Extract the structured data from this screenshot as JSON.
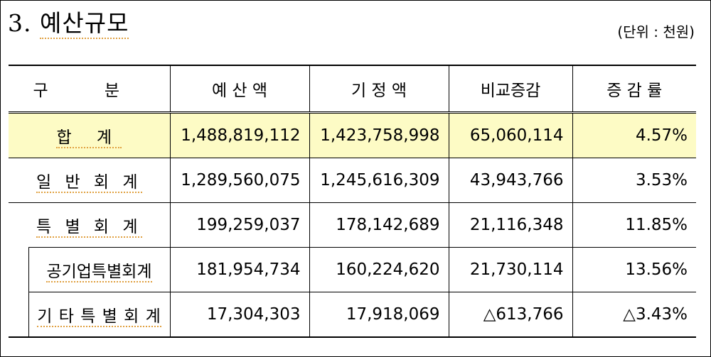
{
  "title": {
    "number": "3.",
    "text": "예산규모"
  },
  "unit_note": "(단위 : 천원)",
  "table": {
    "headers": [
      "구  분",
      "예 산 액",
      "기 정 액",
      "비교증감",
      "증 감 률"
    ],
    "rows": [
      {
        "label": "합 계",
        "budget": "1,488,819,112",
        "prior": "1,423,758,998",
        "change": "65,060,114",
        "rate": "4.57%"
      },
      {
        "label": "일 반 회 계",
        "budget": "1,289,560,075",
        "prior": "1,245,616,309",
        "change": "43,943,766",
        "rate": "3.53%"
      },
      {
        "label": "특 별 회 계",
        "budget": "199,259,037",
        "prior": "178,142,689",
        "change": "21,116,348",
        "rate": "11.85%"
      },
      {
        "label": "공기업특별회계",
        "budget": "181,954,734",
        "prior": "160,224,620",
        "change": "21,730,114",
        "rate": "13.56%"
      },
      {
        "label": "기 타 특 별 회 계",
        "budget": "17,304,303",
        "prior": "17,918,069",
        "change": "△613,766",
        "rate": "△3.43%"
      }
    ]
  }
}
